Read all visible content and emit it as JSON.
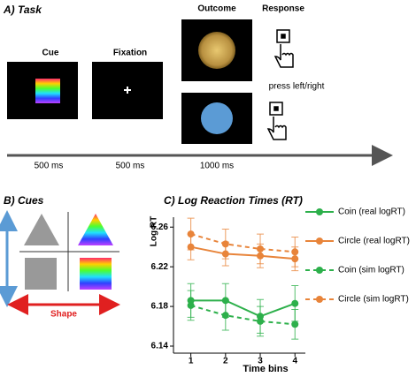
{
  "panel_a": {
    "title": "A)  Task",
    "cue": "Cue",
    "fixation": "Fixation",
    "outcome": "Outcome",
    "response": "Response",
    "press": "press left/right",
    "durations": [
      "500 ms",
      "500 ms",
      "1000 ms"
    ]
  },
  "panel_b": {
    "title": "B)  Cues",
    "shape": "Shape"
  },
  "chart_data": {
    "type": "line",
    "title": "C)  Log Reaction Times (RT)",
    "y_label": "Log RT",
    "x_label": "Time bins",
    "x": [
      1,
      2,
      3,
      4
    ],
    "xlim": [
      0.5,
      4.3
    ],
    "xticks": [
      1,
      2,
      3,
      4
    ],
    "ylim": [
      6.14,
      6.27
    ],
    "yticks": [
      6.14,
      6.18,
      6.22,
      6.26
    ],
    "series": [
      {
        "name": "Coin (real logRT)",
        "color": "#2db04b",
        "linestyle": "solid",
        "values": [
          6.186,
          6.186,
          6.17,
          6.183
        ],
        "errors": [
          0.017,
          0.017,
          0.017,
          0.018
        ]
      },
      {
        "name": "Circle (real logRT)",
        "color": "#e8843a",
        "linestyle": "solid",
        "values": [
          6.24,
          6.233,
          6.231,
          6.228
        ],
        "errors": [
          0.013,
          0.012,
          0.012,
          0.012
        ]
      },
      {
        "name": "Coin (sim logRT)",
        "color": "#2db04b",
        "linestyle": "dashed",
        "values": [
          6.181,
          6.171,
          6.165,
          6.162
        ],
        "errors": [
          0.015,
          0.015,
          0.015,
          0.015
        ]
      },
      {
        "name": "Circle (sim logRT)",
        "color": "#e8843a",
        "linestyle": "dashed",
        "values": [
          6.253,
          6.243,
          6.238,
          6.235
        ],
        "errors": [
          0.016,
          0.015,
          0.015,
          0.015
        ]
      }
    ]
  }
}
